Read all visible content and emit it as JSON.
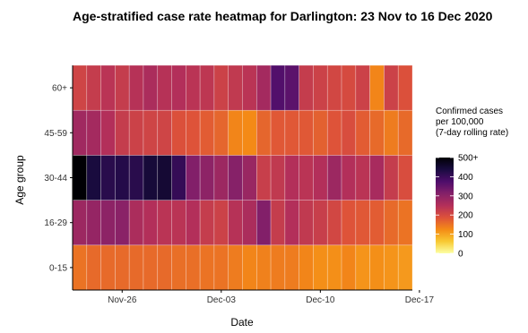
{
  "chart_data": {
    "type": "heatmap",
    "title": "Age-stratified case rate heatmap for Darlington: 23 Nov to 16 Dec 2020",
    "xlabel": "Date",
    "ylabel": "Age group",
    "x_ticks": [
      "Nov-26",
      "Dec-03",
      "Dec-10",
      "Dec-17"
    ],
    "x_dates": [
      "Nov 23",
      "Nov 24",
      "Nov 25",
      "Nov 26",
      "Nov 27",
      "Nov 28",
      "Nov 29",
      "Nov 30",
      "Dec 01",
      "Dec 02",
      "Dec 03",
      "Dec 04",
      "Dec 05",
      "Dec 06",
      "Dec 07",
      "Dec 08",
      "Dec 09",
      "Dec 10",
      "Dec 11",
      "Dec 12",
      "Dec 13",
      "Dec 14",
      "Dec 15",
      "Dec 16"
    ],
    "y_categories": [
      "0-15",
      "16-29",
      "30-44",
      "45-59",
      "60+"
    ],
    "values": {
      "60+": [
        210,
        225,
        240,
        225,
        245,
        260,
        245,
        250,
        240,
        235,
        215,
        230,
        240,
        270,
        370,
        360,
        225,
        215,
        205,
        200,
        215,
        130,
        215,
        190
      ],
      "45-59": [
        275,
        270,
        250,
        225,
        215,
        210,
        210,
        190,
        185,
        175,
        165,
        130,
        125,
        165,
        180,
        180,
        180,
        170,
        185,
        195,
        175,
        160,
        140,
        160
      ],
      "30-44": [
        500,
        440,
        420,
        425,
        420,
        445,
        450,
        405,
        315,
        300,
        280,
        310,
        285,
        220,
        230,
        250,
        240,
        250,
        280,
        250,
        240,
        265,
        225,
        195
      ],
      "16-29": [
        280,
        290,
        300,
        305,
        260,
        250,
        240,
        240,
        250,
        225,
        215,
        245,
        260,
        315,
        225,
        250,
        230,
        220,
        205,
        185,
        180,
        175,
        160,
        150
      ],
      "0-15": [
        150,
        160,
        160,
        160,
        160,
        160,
        160,
        155,
        155,
        150,
        150,
        140,
        130,
        135,
        140,
        140,
        130,
        120,
        120,
        130,
        115,
        120,
        115,
        110
      ]
    },
    "color_scale": {
      "name": "inferno",
      "stops": [
        "#fcffa4",
        "#f8c932",
        "#f48a16",
        "#dd513a",
        "#b32f5a",
        "#842069",
        "#4e0d6b",
        "#1a0b40",
        "#000004"
      ],
      "range": [
        0,
        500
      ]
    },
    "legend": {
      "title_lines": [
        "Confirmed cases",
        "per 100,000",
        "(7-day rolling rate)"
      ],
      "ticks": [
        "500+",
        "400",
        "300",
        "200",
        "100",
        "0"
      ],
      "tick_values": [
        500,
        400,
        300,
        200,
        100,
        0
      ],
      "placement": "right"
    },
    "grid": false
  }
}
